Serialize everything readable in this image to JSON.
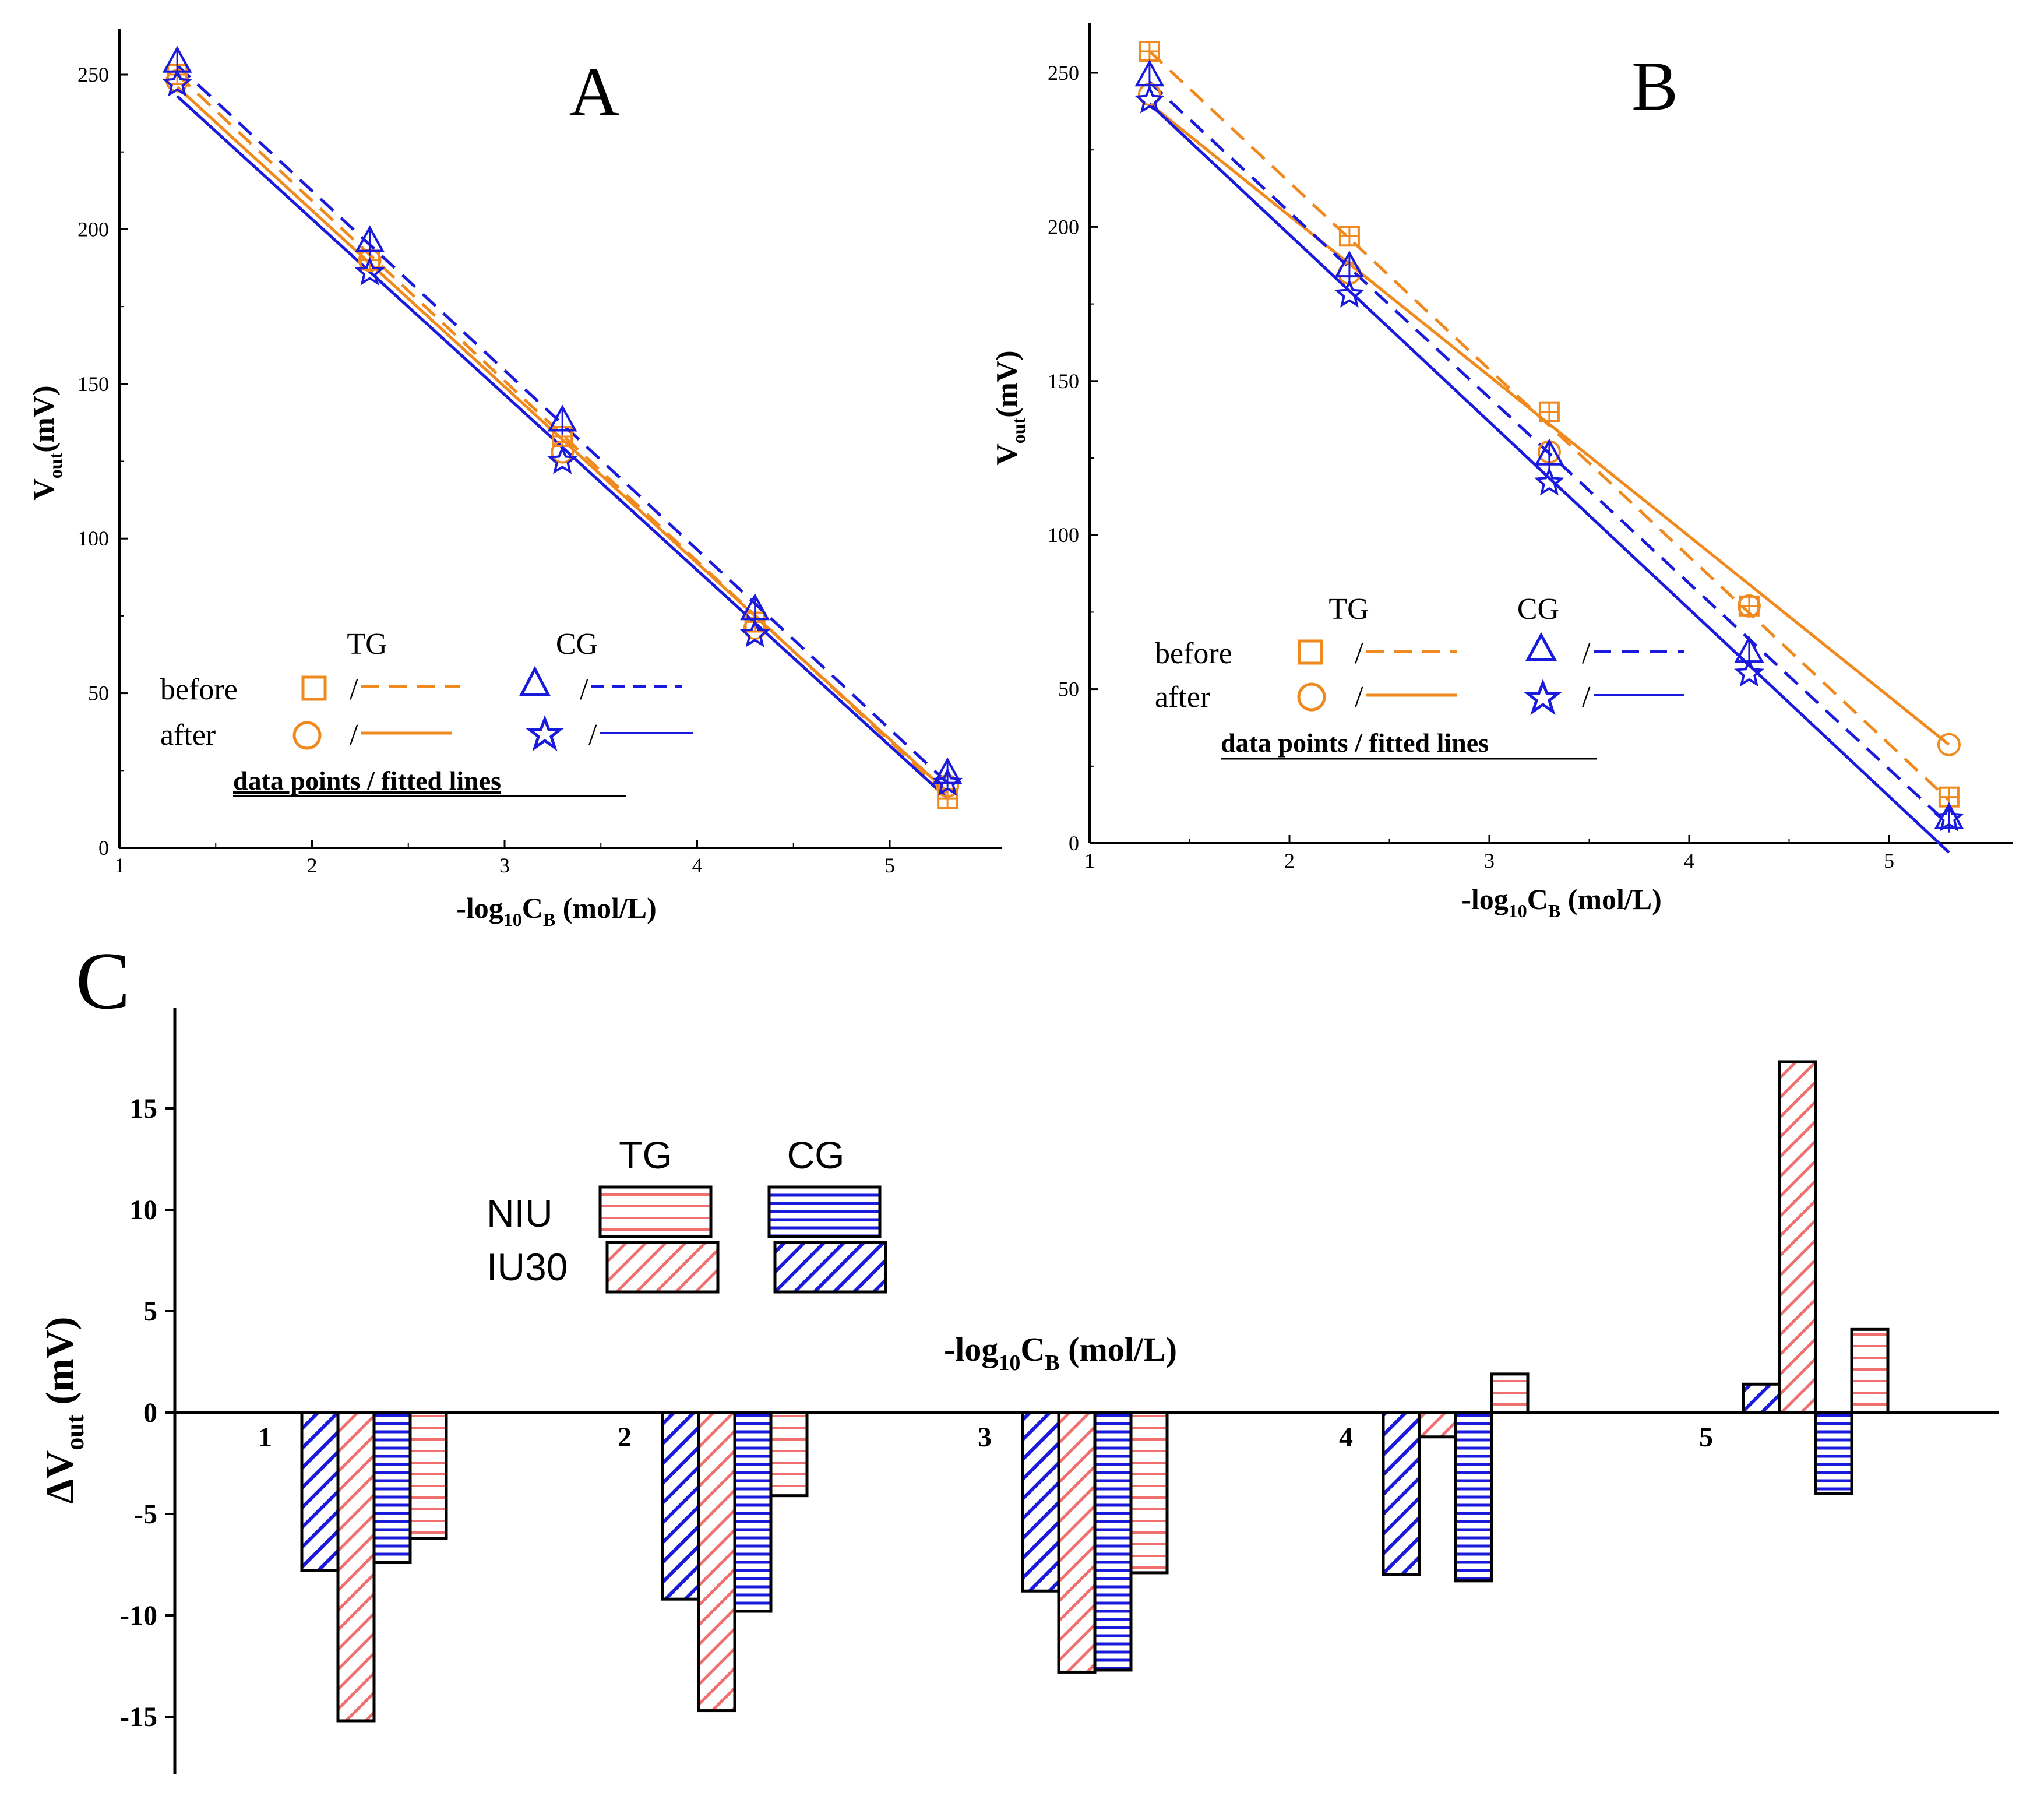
{
  "colors": {
    "orange": "#f08a1e",
    "blue": "#1a1adc",
    "red": "#f07070",
    "black": "#000000"
  },
  "chart_data": [
    {
      "type": "line",
      "panel": "A",
      "title": "A",
      "xlabel": {
        "prefix": "-log",
        "sub": "10",
        "mid": "C",
        "sub2": "B",
        "suffix": " (mol/L)"
      },
      "ylabel": {
        "main": "V",
        "sub": "out",
        "suffix": "(mV)"
      },
      "xlim": [
        1,
        5.5
      ],
      "ylim": [
        0,
        265
      ],
      "xticks": [
        1,
        2,
        3,
        4,
        5
      ],
      "yticks": [
        0,
        50,
        100,
        150,
        200,
        250
      ],
      "x": [
        1.3,
        2.3,
        3.3,
        4.3,
        5.3
      ],
      "series": [
        {
          "name": "TG before",
          "color": "orange",
          "marker": "square",
          "line": "dashed",
          "values": [
            250,
            190,
            133,
            73,
            16
          ],
          "fit": [
            250,
            17
          ]
        },
        {
          "name": "TG after",
          "color": "orange",
          "marker": "circle",
          "line": "solid",
          "values": [
            248,
            190,
            128,
            71,
            20
          ],
          "fit": [
            246,
            18
          ]
        },
        {
          "name": "CG before",
          "color": "blue",
          "marker": "triangle",
          "line": "dashed",
          "values": [
            254,
            196,
            138,
            77,
            24
          ],
          "fit": [
            253,
            21
          ]
        },
        {
          "name": "CG after",
          "color": "blue",
          "marker": "star",
          "line": "solid",
          "values": [
            247,
            186,
            125,
            69,
            21
          ],
          "fit": [
            243,
            16
          ]
        }
      ],
      "legend": {
        "col1": "TG",
        "col2": "CG",
        "row1": "before",
        "row2": "after",
        "sep": "/",
        "caption": "data points / fitted lines"
      }
    },
    {
      "type": "line",
      "panel": "B",
      "title": "B",
      "xlabel": {
        "prefix": "-log",
        "sub": "10",
        "mid": "C",
        "sub2": "B",
        "suffix": " (mol/L)"
      },
      "ylabel": {
        "main": "V",
        "sub": "out",
        "suffix": "(mV)"
      },
      "xlim": [
        1,
        5.5
      ],
      "ylim": [
        0,
        265
      ],
      "xticks": [
        1,
        2,
        3,
        4,
        5
      ],
      "yticks": [
        0,
        50,
        100,
        150,
        200,
        250
      ],
      "x": [
        1.3,
        2.3,
        3.3,
        4.3,
        5.3
      ],
      "series": [
        {
          "name": "TG before",
          "color": "orange",
          "marker": "square",
          "line": "dashed",
          "values": [
            257,
            197,
            140,
            77,
            15
          ],
          "fit": [
            257,
            14
          ]
        },
        {
          "name": "TG after",
          "color": "orange",
          "marker": "circle",
          "line": "solid",
          "values": [
            243,
            185,
            127,
            77,
            32
          ],
          "fit": [
            240,
            32
          ]
        },
        {
          "name": "CG before",
          "color": "blue",
          "marker": "triangle",
          "line": "dashed",
          "values": [
            249,
            187,
            126,
            62,
            8
          ],
          "fit": [
            247,
            6
          ]
        },
        {
          "name": "CG after",
          "color": "blue",
          "marker": "star",
          "line": "solid",
          "values": [
            241,
            178,
            117,
            55,
            8
          ],
          "fit": [
            240,
            -3
          ]
        }
      ],
      "legend": {
        "col1": "TG",
        "col2": "CG",
        "row1": "before",
        "row2": "after",
        "sep": "/",
        "caption": "data points / fitted lines"
      }
    },
    {
      "type": "bar",
      "panel": "C",
      "title": "C",
      "xlabel": {
        "prefix": "-log",
        "sub": "10",
        "mid": "C",
        "sub2": "B",
        "suffix": " (mol/L)"
      },
      "ylabel": {
        "main": "ΔV",
        "sub": "out",
        "suffix": " (mV)"
      },
      "ylim": [
        -18,
        20
      ],
      "yticks": [
        15,
        10,
        5,
        0,
        -5,
        -10,
        -15
      ],
      "categories": [
        "1",
        "2",
        "3",
        "4",
        "5"
      ],
      "series": [
        {
          "name": "CG IU30",
          "color": "blue",
          "hatch": "diag",
          "values": [
            -7.8,
            -9.2,
            -8.8,
            -8.0,
            1.4
          ]
        },
        {
          "name": "TG IU30",
          "color": "red",
          "hatch": "diag",
          "values": [
            -15.2,
            -14.7,
            -12.8,
            -1.2,
            17.3
          ]
        },
        {
          "name": "CG NIU",
          "color": "blue",
          "hatch": "horiz",
          "values": [
            -7.4,
            -9.8,
            -12.7,
            -8.3,
            -4.0
          ]
        },
        {
          "name": "TG NIU",
          "color": "red",
          "hatch": "horiz",
          "values": [
            -6.2,
            -4.1,
            -7.9,
            1.9,
            4.1
          ]
        }
      ],
      "legend": {
        "col1": "TG",
        "col2": "CG",
        "row1": "NIU",
        "row2": "IU30"
      }
    }
  ]
}
